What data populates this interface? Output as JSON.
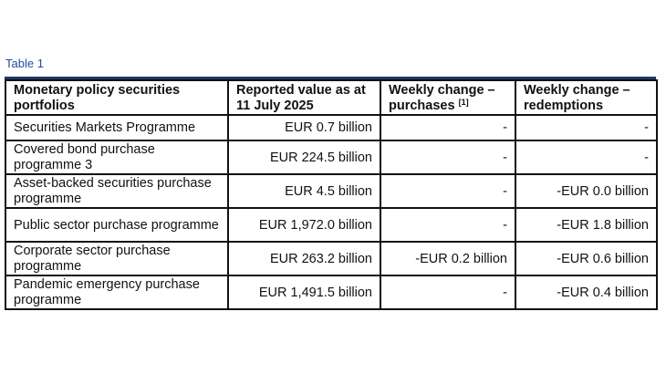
{
  "caption": "Table 1",
  "table": {
    "headers": [
      "Monetary policy securities portfolios",
      "Reported value as at 11 July 2025",
      "Weekly change – purchases",
      "Weekly change – redemptions"
    ],
    "header_footnote": "[1]",
    "rows": [
      [
        "Securities Markets Programme",
        "EUR 0.7 billion",
        "-",
        "-"
      ],
      [
        "Covered bond purchase programme 3",
        "EUR 224.5 billion",
        "-",
        "-"
      ],
      [
        "Asset-backed securities purchase programme",
        "EUR 4.5 billion",
        "-",
        "-EUR 0.0 billion"
      ],
      [
        "Public sector purchase programme",
        "EUR 1,972.0 billion",
        "-",
        "-EUR 1.8 billion"
      ],
      [
        "Corporate sector purchase programme",
        "EUR 263.2 billion",
        "-EUR 0.2 billion",
        "-EUR 0.6 billion"
      ],
      [
        "Pandemic emergency purchase programme",
        "EUR 1,491.5 billion",
        "-",
        "-EUR 0.4 billion"
      ]
    ]
  }
}
